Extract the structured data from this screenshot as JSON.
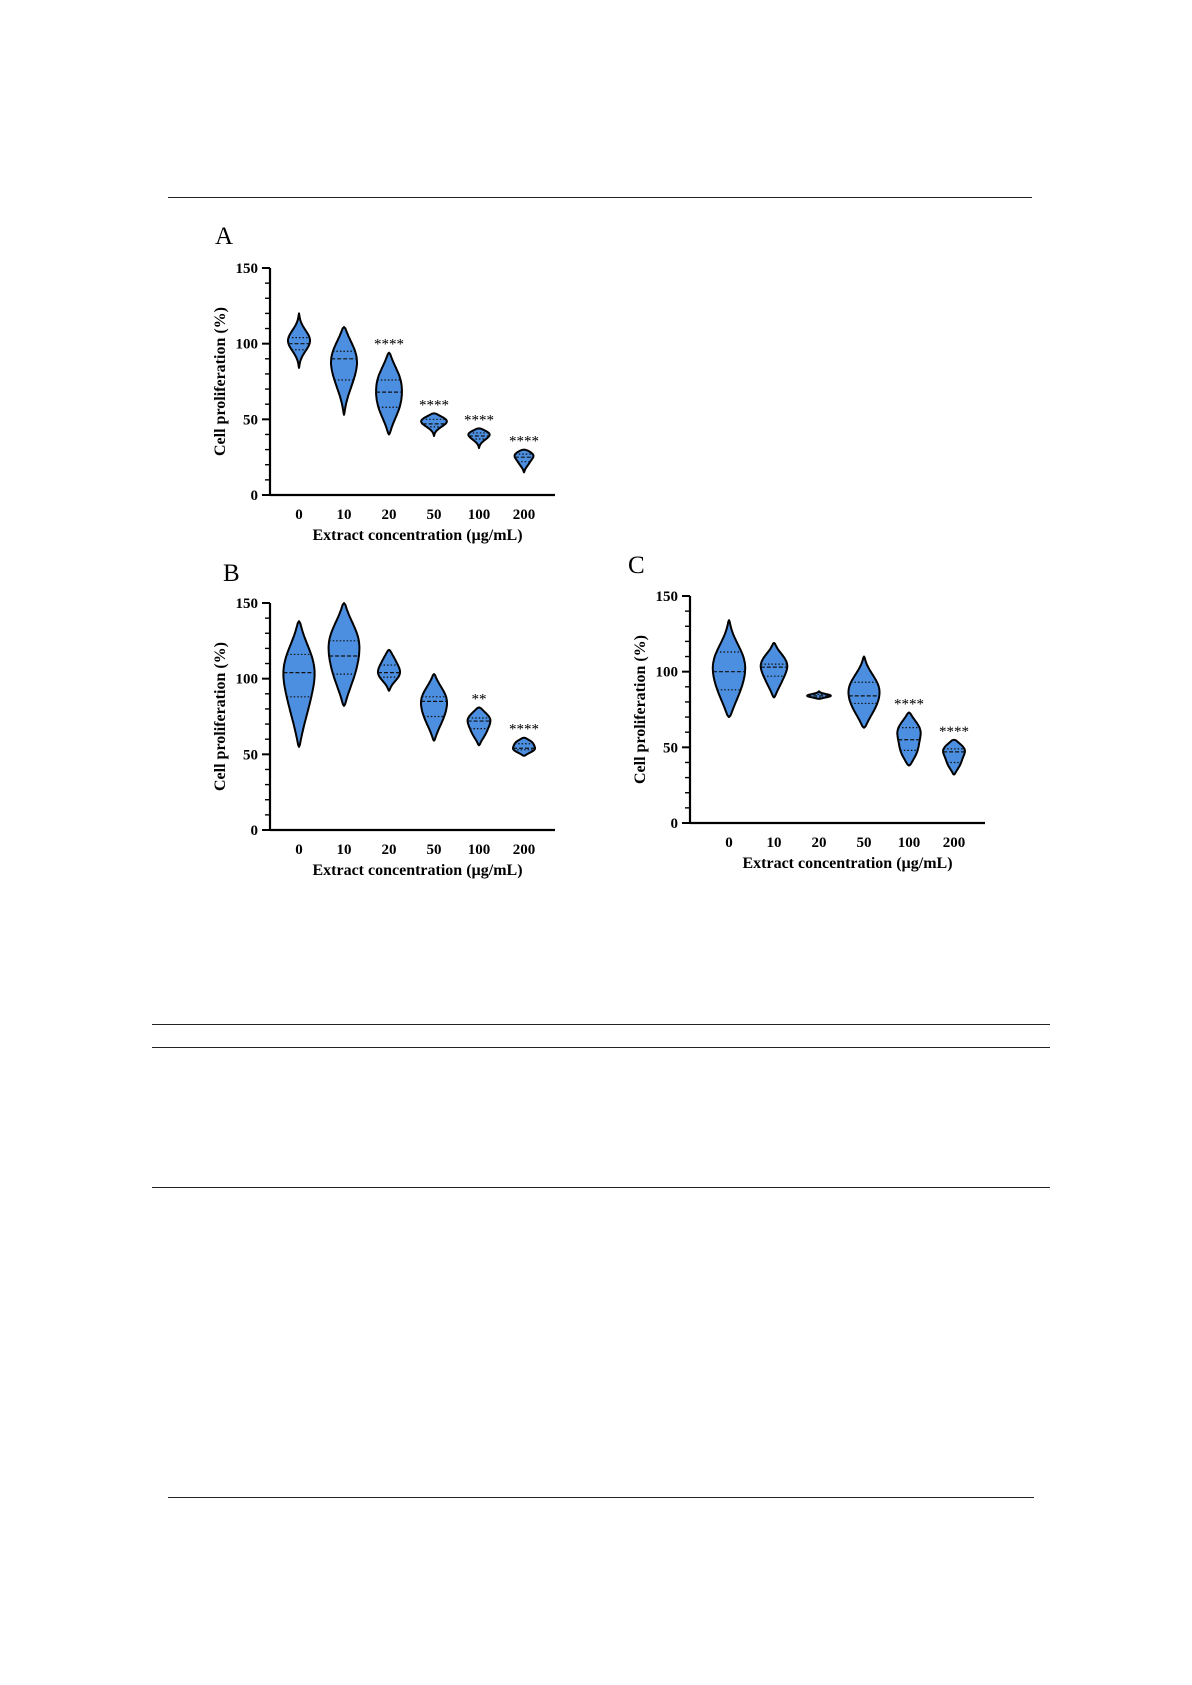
{
  "chart_data": [
    {
      "panel": "A",
      "type": "violin",
      "xlabel": "Extract concentration (µg/mL)",
      "ylabel": "Cell proliferation (%)",
      "ylim": [
        0,
        150
      ],
      "yticks": [
        0,
        50,
        100,
        150
      ],
      "categories": [
        "0",
        "10",
        "20",
        "50",
        "100",
        "200"
      ],
      "violins": [
        {
          "category": "0",
          "min": 84,
          "max": 120,
          "median": 100,
          "q1": 96,
          "q3": 104,
          "modes": [
            [
              102,
              11
            ]
          ],
          "significance": ""
        },
        {
          "category": "10",
          "min": 53,
          "max": 111,
          "median": 90,
          "q1": 76,
          "q3": 95,
          "modes": [
            [
              93,
              11
            ],
            [
              75,
              6
            ]
          ],
          "significance": ""
        },
        {
          "category": "20",
          "min": 40,
          "max": 94,
          "median": 68,
          "q1": 58,
          "q3": 76,
          "modes": [
            [
              77,
              10
            ],
            [
              58,
              9
            ]
          ],
          "significance": "****"
        },
        {
          "category": "50",
          "min": 39,
          "max": 54,
          "median": 47,
          "q1": 45,
          "q3": 50,
          "modes": [
            [
              50,
              11
            ],
            [
              46,
              5
            ]
          ],
          "significance": "****"
        },
        {
          "category": "100",
          "min": 31,
          "max": 44,
          "median": 39,
          "q1": 37,
          "q3": 41,
          "modes": [
            [
              41,
              10
            ],
            [
              37,
              4
            ]
          ],
          "significance": "****"
        },
        {
          "category": "200",
          "min": 15,
          "max": 30,
          "median": 25,
          "q1": 22,
          "q3": 27,
          "modes": [
            [
              27,
              10
            ],
            [
              21,
              4
            ]
          ],
          "significance": "****"
        }
      ]
    },
    {
      "panel": "B",
      "type": "violin",
      "xlabel": "Extract concentration (µg/mL)",
      "ylabel": "Cell proliferation (%)",
      "ylim": [
        0,
        150
      ],
      "yticks": [
        0,
        50,
        100,
        150
      ],
      "categories": [
        "0",
        "10",
        "20",
        "50",
        "100",
        "200"
      ],
      "violins": [
        {
          "category": "0",
          "min": 55,
          "max": 138,
          "median": 104,
          "q1": 88,
          "q3": 116,
          "modes": [
            [
              109,
              14
            ],
            [
              80,
              7
            ]
          ],
          "significance": ""
        },
        {
          "category": "10",
          "min": 82,
          "max": 150,
          "median": 115,
          "q1": 103,
          "q3": 125,
          "modes": [
            [
              127,
              13
            ],
            [
              103,
              9
            ]
          ],
          "significance": ""
        },
        {
          "category": "20",
          "min": 92,
          "max": 119,
          "median": 104,
          "q1": 101,
          "q3": 109,
          "modes": [
            [
              113,
              5
            ],
            [
              103,
              10
            ]
          ],
          "significance": ""
        },
        {
          "category": "50",
          "min": 59,
          "max": 103,
          "median": 85,
          "q1": 75,
          "q3": 88,
          "modes": [
            [
              88,
              11
            ],
            [
              73,
              7
            ]
          ],
          "significance": ""
        },
        {
          "category": "100",
          "min": 56,
          "max": 81,
          "median": 72,
          "q1": 67,
          "q3": 74,
          "modes": [
            [
              74,
              11
            ],
            [
              64,
              6
            ]
          ],
          "significance": "**"
        },
        {
          "category": "200",
          "min": 49,
          "max": 61,
          "median": 54,
          "q1": 53,
          "q3": 57,
          "modes": [
            [
              58,
              8
            ],
            [
              53,
              10
            ]
          ],
          "significance": "****"
        }
      ]
    },
    {
      "panel": "C",
      "type": "violin",
      "xlabel": "Extract concentration (µg/mL)",
      "ylabel": "Cell proliferation (%)",
      "ylim": [
        0,
        150
      ],
      "yticks": [
        0,
        50,
        100,
        150
      ],
      "categories": [
        "0",
        "10",
        "20",
        "50",
        "100",
        "200"
      ],
      "violins": [
        {
          "category": "0",
          "min": 70,
          "max": 134,
          "median": 100,
          "q1": 88,
          "q3": 113,
          "modes": [
            [
              108,
              13
            ],
            [
              87,
              9
            ]
          ],
          "significance": ""
        },
        {
          "category": "10",
          "min": 83,
          "max": 119,
          "median": 103,
          "q1": 97,
          "q3": 105,
          "modes": [
            [
              106,
              12
            ],
            [
              93,
              6
            ]
          ],
          "significance": ""
        },
        {
          "category": "20",
          "min": 82,
          "max": 87,
          "median": 84,
          "q1": 83,
          "q3": 85,
          "modes": [
            [
              84,
              12
            ]
          ],
          "significance": ""
        },
        {
          "category": "50",
          "min": 63,
          "max": 110,
          "median": 84,
          "q1": 79,
          "q3": 93,
          "modes": [
            [
              91,
              12
            ],
            [
              76,
              9
            ]
          ],
          "significance": ""
        },
        {
          "category": "100",
          "min": 38,
          "max": 73,
          "median": 55,
          "q1": 48,
          "q3": 63,
          "modes": [
            [
              62,
              11
            ],
            [
              47,
              8
            ]
          ],
          "significance": "****"
        },
        {
          "category": "200",
          "min": 32,
          "max": 55,
          "median": 47,
          "q1": 40,
          "q3": 49,
          "modes": [
            [
              49,
              11
            ],
            [
              39,
              6
            ]
          ],
          "significance": "****"
        }
      ]
    }
  ]
}
